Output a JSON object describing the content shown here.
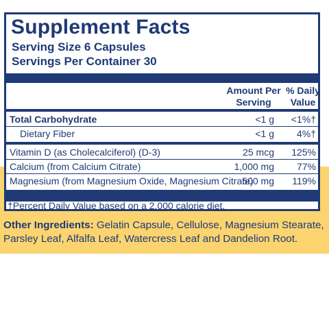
{
  "title": "Supplement Facts",
  "serving_size": "Serving Size 6 Capsules",
  "servings_per_container": "Servings Per Container 30",
  "headers": {
    "amount_line1": "Amount Per",
    "amount_line2": "Serving",
    "dv_line1": "% Daily",
    "dv_line2": "Value"
  },
  "rows": [
    {
      "label": "Total Carbohydrate",
      "amount": "<1 g",
      "dv": "<1%†"
    },
    {
      "label": "Dietary Fiber",
      "amount": "<1 g",
      "dv": "4%†"
    },
    {
      "label": "Vitamin D (as Cholecalciferol) (D-3)",
      "amount": "25 mcg",
      "dv": "125%"
    },
    {
      "label": "Calcium (from Calcium Citrate)",
      "amount": "1,000 mg",
      "dv": "77%"
    },
    {
      "label": "Magnesium (from Magnesium Oxide, Magnesium Citrate)",
      "amount": "500 mg",
      "dv": "119%"
    }
  ],
  "footnote": "†Percent Daily Value based on a 2,000 calorie diet.",
  "other_ingredients": {
    "label": "Other Ingredients:",
    "text": " Gelatin Capsule, Cellulose, Magnesium Stearate, Parsley Leaf, Alfalfa Leaf, Watercress Leaf and Dandelion Root."
  },
  "colors": {
    "navy": "#1f3a75",
    "yellow_band": "#fbd470",
    "background": "#ffffff"
  }
}
